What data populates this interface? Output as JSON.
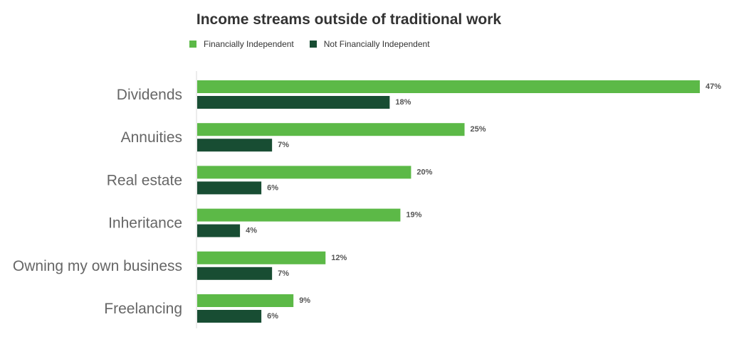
{
  "chart_data": {
    "type": "bar",
    "orientation": "horizontal",
    "title": "Income streams outside of traditional work",
    "categories": [
      "Dividends",
      "Annuities",
      "Real estate",
      "Inheritance",
      "Owning my own business",
      "Freelancing"
    ],
    "series": [
      {
        "name": "Financially Independent",
        "color": "#5cb947",
        "values": [
          47,
          25,
          20,
          19,
          12,
          9
        ],
        "labels": [
          "47%",
          "25%",
          "20%",
          "19%",
          "12%",
          "9%"
        ]
      },
      {
        "name": "Not Financially Independent",
        "color": "#184d33",
        "values": [
          18,
          7,
          6,
          4,
          7,
          6
        ],
        "labels": [
          "18%",
          "7%",
          "6%",
          "4%",
          "7%",
          "6%"
        ]
      }
    ],
    "xlim": [
      0,
      47
    ],
    "legend_position": "top-left",
    "grid": false
  }
}
